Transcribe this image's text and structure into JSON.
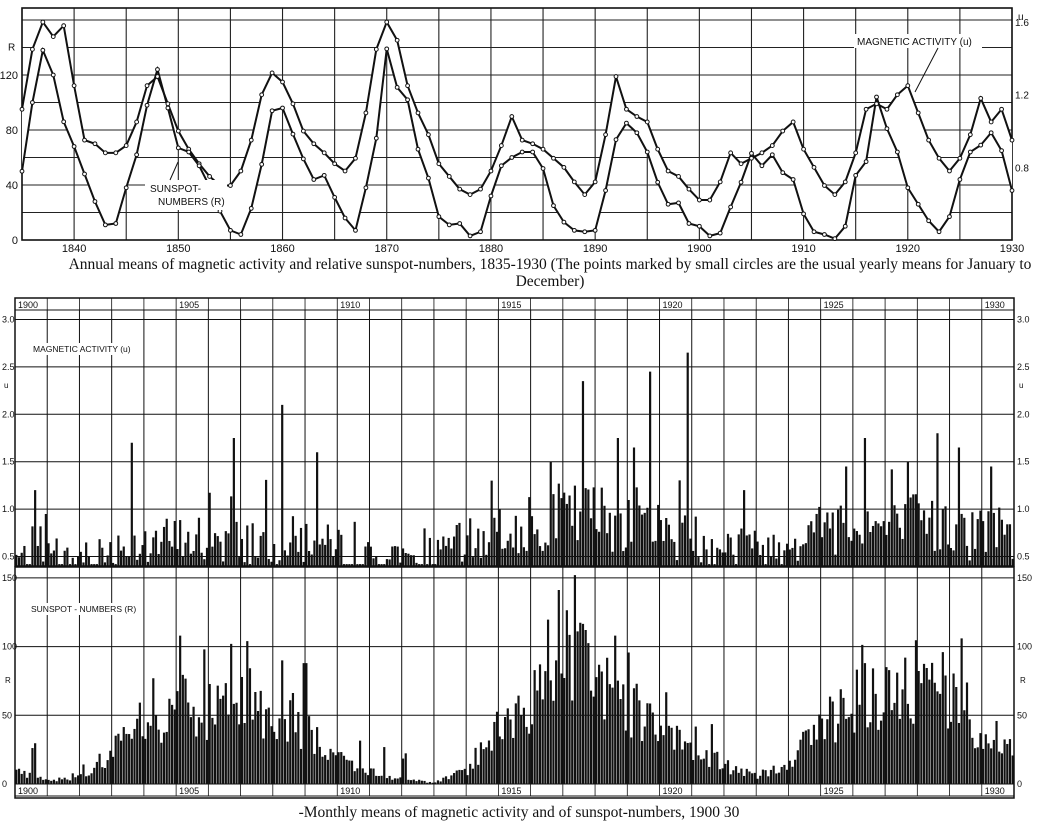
{
  "chart_data": [
    {
      "type": "line",
      "title": "Annual means of magnetic activity and relative sunspot-numbers, 1835-1930 (The points marked by small circles are the usual yearly means for January to December)",
      "x_ticks": [
        "1840",
        "1850",
        "1860",
        "1870",
        "1880",
        "1890",
        "1900",
        "1910",
        "1920",
        "1930"
      ],
      "x_range": [
        1835,
        1930
      ],
      "left_axis": {
        "label": "R",
        "ticks": [
          "0",
          "40",
          "80",
          "120"
        ],
        "range": [
          0,
          160
        ]
      },
      "right_axis": {
        "label": "u",
        "ticks": [
          "0.8",
          "1.2",
          "1.6"
        ],
        "range": [
          0.4,
          1.65
        ]
      },
      "annotations": [
        "MAGNETIC ACTIVITY (u)",
        "SUNSPOT-\nNUMBERS (R)"
      ],
      "grid": true,
      "series": [
        {
          "name": "MAGNETIC ACTIVITY (u)",
          "axis": "right",
          "x": [
            1835,
            1836,
            1837,
            1838,
            1839,
            1840,
            1841,
            1842,
            1843,
            1844,
            1845,
            1846,
            1847,
            1848,
            1849,
            1850,
            1851,
            1852,
            1853,
            1854,
            1855,
            1856,
            1857,
            1858,
            1859,
            1860,
            1861,
            1862,
            1863,
            1864,
            1865,
            1866,
            1867,
            1868,
            1869,
            1870,
            1871,
            1872,
            1873,
            1874,
            1875,
            1876,
            1877,
            1878,
            1879,
            1880,
            1881,
            1882,
            1883,
            1884,
            1885,
            1886,
            1887,
            1888,
            1889,
            1890,
            1891,
            1892,
            1893,
            1894,
            1895,
            1896,
            1897,
            1898,
            1899,
            1900,
            1901,
            1902,
            1903,
            1904,
            1905,
            1906,
            1907,
            1908,
            1909,
            1910,
            1911,
            1912,
            1913,
            1914,
            1915,
            1916,
            1917,
            1918,
            1919,
            1920,
            1921,
            1922,
            1923,
            1924,
            1925,
            1926,
            1927,
            1928,
            1929,
            1930
          ],
          "y": [
            1.12,
            1.45,
            1.6,
            1.52,
            1.58,
            1.25,
            0.95,
            0.93,
            0.88,
            0.88,
            0.92,
            1.05,
            1.25,
            1.3,
            1.15,
            1.0,
            0.9,
            0.82,
            0.75,
            0.7,
            0.7,
            0.78,
            0.95,
            1.2,
            1.32,
            1.27,
            1.15,
            1.0,
            0.93,
            0.88,
            0.82,
            0.78,
            0.85,
            1.1,
            1.45,
            1.6,
            1.5,
            1.25,
            1.1,
            0.98,
            0.82,
            0.75,
            0.68,
            0.65,
            0.68,
            0.78,
            0.92,
            1.08,
            0.95,
            0.93,
            0.9,
            0.85,
            0.8,
            0.72,
            0.65,
            0.72,
            0.98,
            1.3,
            1.12,
            1.08,
            1.05,
            0.9,
            0.78,
            0.75,
            0.68,
            0.62,
            0.62,
            0.72,
            0.88,
            0.82,
            0.85,
            0.88,
            0.92,
            1.0,
            1.05,
            0.9,
            0.8,
            0.7,
            0.65,
            0.72,
            0.88,
            1.12,
            1.15,
            1.12,
            1.2,
            1.25,
            1.1,
            0.95,
            0.85,
            0.78,
            0.85,
            0.98,
            1.18,
            1.05,
            1.12,
            0.95
          ]
        },
        {
          "name": "SUNSPOT-NUMBERS (R)",
          "axis": "left",
          "x": [
            1835,
            1836,
            1837,
            1838,
            1839,
            1840,
            1841,
            1842,
            1843,
            1844,
            1845,
            1846,
            1847,
            1848,
            1849,
            1850,
            1851,
            1852,
            1853,
            1854,
            1855,
            1856,
            1857,
            1858,
            1859,
            1860,
            1861,
            1862,
            1863,
            1864,
            1865,
            1866,
            1867,
            1868,
            1869,
            1870,
            1871,
            1872,
            1873,
            1874,
            1875,
            1876,
            1877,
            1878,
            1879,
            1880,
            1881,
            1882,
            1883,
            1884,
            1885,
            1886,
            1887,
            1888,
            1889,
            1890,
            1891,
            1892,
            1893,
            1894,
            1895,
            1896,
            1897,
            1898,
            1899,
            1900,
            1901,
            1902,
            1903,
            1904,
            1905,
            1906,
            1907,
            1908,
            1909,
            1910,
            1911,
            1912,
            1913,
            1914,
            1915,
            1916,
            1917,
            1918,
            1919,
            1920,
            1921,
            1922,
            1923,
            1924,
            1925,
            1926,
            1927,
            1928,
            1929,
            1930
          ],
          "y": [
            50,
            100,
            138,
            120,
            86,
            68,
            48,
            28,
            11,
            12,
            38,
            62,
            98,
            124,
            96,
            67,
            64,
            54,
            39,
            21,
            7,
            4,
            23,
            55,
            94,
            96,
            77,
            59,
            44,
            47,
            31,
            16,
            7,
            38,
            74,
            139,
            111,
            102,
            66,
            45,
            17,
            11,
            12,
            3,
            6,
            32,
            54,
            60,
            64,
            64,
            52,
            25,
            13,
            7,
            6,
            7,
            36,
            73,
            85,
            78,
            64,
            42,
            26,
            27,
            12,
            10,
            3,
            5,
            24,
            42,
            63,
            54,
            62,
            49,
            44,
            19,
            6,
            4,
            1,
            10,
            47,
            57,
            104,
            81,
            64,
            38,
            26,
            14,
            6,
            17,
            44,
            64,
            69,
            78,
            65,
            36
          ]
        }
      ]
    },
    {
      "type": "bar",
      "title": "-Monthly means of magnetic activity and of sunspot-numbers, 1900 30",
      "x_ticks": [
        "1900",
        "1905",
        "1910",
        "1915",
        "1920",
        "1925",
        "1930"
      ],
      "x_range": [
        1900,
        1931
      ],
      "y_label": "u",
      "y_ticks": [
        "0.5",
        "1.0",
        "1.5",
        "2.0",
        "2.5",
        "3.0"
      ],
      "ylim": [
        0.4,
        3.1
      ],
      "series_name": "MAGNETIC ACTIVITY (u)",
      "annual_levels": [
        0.52,
        0.48,
        0.5,
        0.62,
        0.7,
        0.72,
        0.74,
        0.74,
        0.72,
        0.72,
        0.62,
        0.52,
        0.48,
        0.5,
        0.7,
        0.82,
        0.95,
        1.0,
        1.0,
        1.0,
        0.85,
        0.75,
        0.68,
        0.62,
        0.66,
        0.82,
        0.95,
        0.85,
        0.92,
        0.8,
        0.78
      ],
      "peaks": [
        [
          1900.6,
          1.2
        ],
        [
          1903.6,
          1.7
        ],
        [
          1906.8,
          1.75
        ],
        [
          1908.3,
          2.1
        ],
        [
          1909.4,
          1.6
        ],
        [
          1914.8,
          1.3
        ],
        [
          1916.6,
          1.5
        ],
        [
          1917.6,
          2.35
        ],
        [
          1918.7,
          1.75
        ],
        [
          1919.2,
          1.65
        ],
        [
          1919.7,
          2.45
        ],
        [
          1920.9,
          2.65
        ],
        [
          1922.6,
          1.2
        ],
        [
          1925.8,
          1.45
        ],
        [
          1926.4,
          1.75
        ],
        [
          1927.7,
          1.5
        ],
        [
          1928.6,
          1.8
        ],
        [
          1929.3,
          1.65
        ],
        [
          1930.3,
          1.45
        ]
      ],
      "grid": true
    },
    {
      "type": "bar",
      "title": "",
      "x_ticks": [
        "1900",
        "1905",
        "1910",
        "1915",
        "1920",
        "1925",
        "1930"
      ],
      "x_range": [
        1900,
        1931
      ],
      "y_label": "R",
      "y_ticks": [
        "0",
        "50",
        "100",
        "150"
      ],
      "ylim": [
        0,
        155
      ],
      "series_name": "SUNSPOT-NUMBERS (R)",
      "annual_levels": [
        10,
        3,
        5,
        24,
        42,
        63,
        54,
        62,
        49,
        44,
        19,
        6,
        4,
        1,
        10,
        47,
        57,
        104,
        81,
        64,
        38,
        26,
        14,
        6,
        17,
        44,
        64,
        69,
        78,
        65,
        36
      ],
      "peaks": [
        [
          1904.8,
          62
        ],
        [
          1905.1,
          108
        ],
        [
          1905.9,
          98
        ],
        [
          1906.7,
          102
        ],
        [
          1907.2,
          104
        ],
        [
          1908.3,
          90
        ],
        [
          1909.0,
          88
        ],
        [
          1917.4,
          152
        ],
        [
          1918.6,
          108
        ],
        [
          1919.8,
          52
        ],
        [
          1926.4,
          88
        ],
        [
          1927.6,
          92
        ],
        [
          1928.8,
          96
        ],
        [
          1929.4,
          106
        ]
      ],
      "grid": true
    }
  ],
  "labels": {
    "u": "u",
    "R": "R",
    "mag_label_top": "MAGNETIC ACTIVITY (u)",
    "sunspot_label_top": "SUNSPOT-\nNUMBERS (R)",
    "mag_label_mid": "MAGNETIC ACTIVITY (u)",
    "sunspot_label_bottom": "SUNSPOT - NUMBERS (R)"
  },
  "captions": {
    "top": "Annual means of magnetic activity and relative sunspot-numbers, 1835-1930 (The points marked by small circles are the usual yearly means for January to December)",
    "bottom": "-Monthly means of magnetic activity and of sunspot-numbers, 1900 30"
  }
}
